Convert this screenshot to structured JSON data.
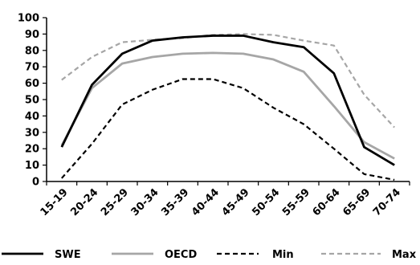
{
  "chart_data": {
    "type": "line",
    "title": "",
    "xlabel": "",
    "ylabel": "",
    "categories": [
      "15-19",
      "20-24",
      "25-29",
      "30-34",
      "35-39",
      "40-44",
      "45-49",
      "50-54",
      "55-59",
      "60-64",
      "65-69",
      "70-74"
    ],
    "ylim": [
      0,
      100
    ],
    "yticks": [
      "0",
      "10",
      "20",
      "30",
      "40",
      "50",
      "60",
      "70",
      "80",
      "90",
      "100"
    ],
    "grid": false,
    "legend_position": "bottom",
    "series": [
      {
        "name": "SWE",
        "color": "#000000",
        "dash": "solid",
        "values": [
          21,
          59,
          78,
          86,
          88,
          89,
          89,
          85,
          82,
          66,
          21,
          10
        ]
      },
      {
        "name": "OECD",
        "color": "#a6a6a6",
        "dash": "solid",
        "values": [
          22,
          57,
          72,
          76,
          78,
          78.5,
          78,
          74.5,
          67,
          46,
          24,
          14
        ]
      },
      {
        "name": "Min",
        "color": "#000000",
        "dash": "dashed",
        "values": [
          2,
          23,
          47,
          56,
          62.5,
          62.5,
          57,
          45,
          35,
          20,
          4.5,
          1
        ]
      },
      {
        "name": "Max",
        "color": "#a6a6a6",
        "dash": "dashed",
        "values": [
          62,
          76,
          85,
          86.5,
          87.5,
          89.5,
          90,
          89.5,
          86,
          83,
          53,
          33
        ]
      }
    ]
  }
}
